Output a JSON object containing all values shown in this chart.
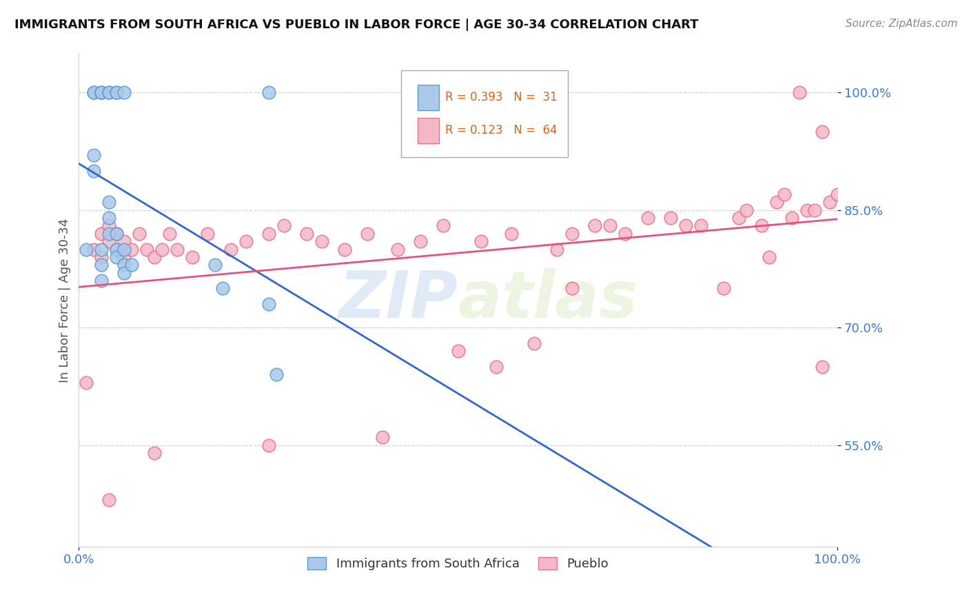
{
  "title": "IMMIGRANTS FROM SOUTH AFRICA VS PUEBLO IN LABOR FORCE | AGE 30-34 CORRELATION CHART",
  "source": "Source: ZipAtlas.com",
  "ylabel": "In Labor Force | Age 30-34",
  "x_min": 0.0,
  "x_max": 1.0,
  "y_min": 0.42,
  "y_max": 1.05,
  "y_ticks": [
    0.55,
    0.7,
    0.85,
    1.0
  ],
  "y_tick_labels": [
    "55.0%",
    "70.0%",
    "85.0%",
    "100.0%"
  ],
  "x_tick_labels": [
    "0.0%",
    "100.0%"
  ],
  "blue_color": "#aac9e8",
  "blue_edge_color": "#5b9bd5",
  "pink_color": "#f4b8c8",
  "pink_edge_color": "#e8708a",
  "line_blue_color": "#3366cc",
  "line_pink_color": "#e8507a",
  "legend_R1": "R = 0.393",
  "legend_N1": "N =  31",
  "legend_R2": "R = 0.123",
  "legend_N2": "N =  64",
  "watermark_zip": "ZIP",
  "watermark_atlas": "atlas",
  "blue_x": [
    0.01,
    0.02,
    0.02,
    0.02,
    0.02,
    0.03,
    0.03,
    0.03,
    0.03,
    0.03,
    0.03,
    0.04,
    0.04,
    0.04,
    0.04,
    0.04,
    0.05,
    0.05,
    0.05,
    0.05,
    0.05,
    0.06,
    0.06,
    0.06,
    0.06,
    0.07,
    0.18,
    0.19,
    0.25,
    0.26,
    0.25
  ],
  "blue_y": [
    0.8,
    0.92,
    0.9,
    1.0,
    1.0,
    1.0,
    1.0,
    1.0,
    0.8,
    0.78,
    0.76,
    1.0,
    1.0,
    0.86,
    0.84,
    0.82,
    1.0,
    1.0,
    0.82,
    0.8,
    0.79,
    1.0,
    0.8,
    0.78,
    0.77,
    0.78,
    0.78,
    0.75,
    1.0,
    0.64,
    0.73
  ],
  "pink_x": [
    0.01,
    0.02,
    0.03,
    0.03,
    0.04,
    0.04,
    0.05,
    0.05,
    0.06,
    0.06,
    0.07,
    0.08,
    0.09,
    0.1,
    0.11,
    0.12,
    0.13,
    0.15,
    0.17,
    0.2,
    0.22,
    0.25,
    0.27,
    0.3,
    0.32,
    0.35,
    0.38,
    0.42,
    0.45,
    0.48,
    0.5,
    0.53,
    0.55,
    0.57,
    0.6,
    0.63,
    0.65,
    0.68,
    0.7,
    0.72,
    0.75,
    0.78,
    0.8,
    0.82,
    0.85,
    0.87,
    0.88,
    0.9,
    0.91,
    0.92,
    0.93,
    0.94,
    0.95,
    0.96,
    0.97,
    0.98,
    0.98,
    0.99,
    1.0,
    0.04,
    0.1,
    0.25,
    0.4,
    0.65
  ],
  "pink_y": [
    0.63,
    0.8,
    0.82,
    0.79,
    0.83,
    0.81,
    0.82,
    0.8,
    0.81,
    0.79,
    0.8,
    0.82,
    0.8,
    0.79,
    0.8,
    0.82,
    0.8,
    0.79,
    0.82,
    0.8,
    0.81,
    0.82,
    0.83,
    0.82,
    0.81,
    0.8,
    0.82,
    0.8,
    0.81,
    0.83,
    0.67,
    0.81,
    0.65,
    0.82,
    0.68,
    0.8,
    0.82,
    0.83,
    0.83,
    0.82,
    0.84,
    0.84,
    0.83,
    0.83,
    0.75,
    0.84,
    0.85,
    0.83,
    0.79,
    0.86,
    0.87,
    0.84,
    1.0,
    0.85,
    0.85,
    0.65,
    0.95,
    0.86,
    0.87,
    0.48,
    0.54,
    0.55,
    0.56,
    0.75
  ]
}
